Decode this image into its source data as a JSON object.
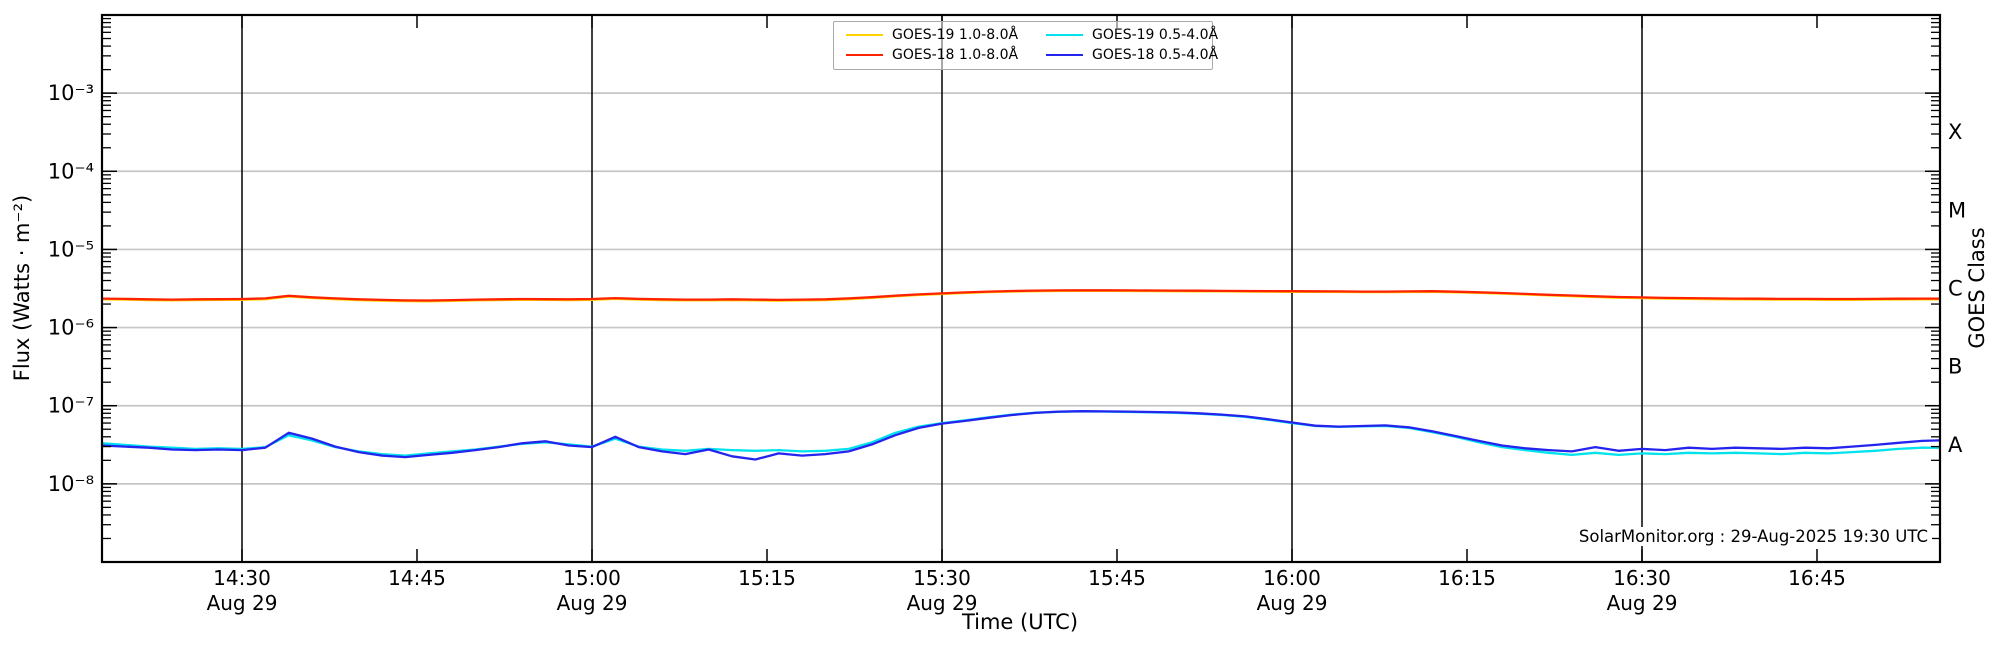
{
  "footer": {
    "credit": "SolarMonitor.org : 29-Aug-2025 19:30 UTC"
  },
  "legend": {
    "items": [
      {
        "label": "GOES-19 1.0-8.0Å",
        "color": "#ffd400"
      },
      {
        "label": "GOES-19 0.5-4.0Å",
        "color": "#00e2ec"
      },
      {
        "label": "GOES-18 1.0-8.0Å",
        "color": "#ff2200"
      },
      {
        "label": "GOES-18 0.5-4.0Å",
        "color": "#2424ee"
      }
    ]
  },
  "chart_data": {
    "type": "line",
    "title": "",
    "xlabel": "Time (UTC)",
    "ylabel_left": "Flux (Watts · m⁻²)",
    "ylabel_right": "GOES Class",
    "x_axis": {
      "unit": "minutes after 14:00 UTC",
      "range_min": [
        17.8,
        175.5
      ],
      "ticks": [
        {
          "t": 30,
          "label": "14:30",
          "date": "Aug 29",
          "gridline": true
        },
        {
          "t": 45,
          "label": "14:45",
          "date": "",
          "gridline": false
        },
        {
          "t": 60,
          "label": "15:00",
          "date": "Aug 29",
          "gridline": true
        },
        {
          "t": 75,
          "label": "15:15",
          "date": "",
          "gridline": false
        },
        {
          "t": 90,
          "label": "15:30",
          "date": "Aug 29",
          "gridline": true
        },
        {
          "t": 105,
          "label": "15:45",
          "date": "",
          "gridline": false
        },
        {
          "t": 120,
          "label": "16:00",
          "date": "Aug 29",
          "gridline": true
        },
        {
          "t": 135,
          "label": "16:15",
          "date": "",
          "gridline": false
        },
        {
          "t": 150,
          "label": "16:30",
          "date": "Aug 29",
          "gridline": true
        },
        {
          "t": 165,
          "label": "16:45",
          "date": "",
          "gridline": false
        }
      ]
    },
    "y_axis": {
      "scale": "log",
      "range": [
        1e-09,
        0.01
      ],
      "tick_exponents": [
        -3,
        -4,
        -5,
        -6,
        -7,
        -8
      ],
      "tick_labels": [
        "10⁻³",
        "10⁻⁴",
        "10⁻⁵",
        "10⁻⁶",
        "10⁻⁷",
        "10⁻⁸"
      ],
      "gridline_exponents": [
        -3,
        -4,
        -5,
        -6,
        -7,
        -8
      ]
    },
    "goes_classes": [
      {
        "label": "X",
        "center_flux": 0.000316
      },
      {
        "label": "M",
        "center_flux": 3.16e-05
      },
      {
        "label": "C",
        "center_flux": 3.16e-06
      },
      {
        "label": "B",
        "center_flux": 3.16e-07
      },
      {
        "label": "A",
        "center_flux": 3.16e-08
      }
    ],
    "colors": {
      "frame": "#000000",
      "half_hour_gridline": "#000000",
      "decade_gridline": "#c6c6c6",
      "background": "#ffffff"
    },
    "times_min": [
      18,
      20,
      22,
      24,
      26,
      28,
      30,
      32,
      34,
      36,
      38,
      40,
      42,
      44,
      46,
      48,
      50,
      52,
      54,
      56,
      58,
      60,
      62,
      64,
      66,
      68,
      70,
      72,
      74,
      76,
      78,
      80,
      82,
      84,
      86,
      88,
      90,
      92,
      94,
      96,
      98,
      100,
      102,
      104,
      106,
      108,
      110,
      112,
      114,
      116,
      118,
      120,
      122,
      124,
      126,
      128,
      130,
      132,
      134,
      136,
      138,
      140,
      142,
      144,
      146,
      148,
      150,
      152,
      154,
      156,
      158,
      160,
      162,
      164,
      166,
      168,
      170,
      172,
      174,
      175.5
    ],
    "series": [
      {
        "name": "GOES-19 1.0-8.0Å",
        "color": "#ffd400",
        "scale": 1e-06,
        "values": [
          2.3,
          2.28,
          2.25,
          2.23,
          2.25,
          2.26,
          2.27,
          2.31,
          2.5,
          2.39,
          2.31,
          2.25,
          2.21,
          2.18,
          2.17,
          2.2,
          2.23,
          2.25,
          2.27,
          2.26,
          2.25,
          2.27,
          2.33,
          2.28,
          2.25,
          2.23,
          2.23,
          2.25,
          2.23,
          2.21,
          2.23,
          2.25,
          2.31,
          2.4,
          2.51,
          2.61,
          2.69,
          2.77,
          2.84,
          2.89,
          2.92,
          2.94,
          2.95,
          2.95,
          2.94,
          2.93,
          2.92,
          2.91,
          2.9,
          2.89,
          2.88,
          2.87,
          2.86,
          2.85,
          2.84,
          2.84,
          2.85,
          2.87,
          2.83,
          2.78,
          2.72,
          2.65,
          2.58,
          2.52,
          2.46,
          2.41,
          2.38,
          2.35,
          2.33,
          2.31,
          2.3,
          2.29,
          2.28,
          2.28,
          2.27,
          2.27,
          2.28,
          2.29,
          2.3,
          2.3
        ]
      },
      {
        "name": "GOES-18 1.0-8.0Å",
        "color": "#ff2200",
        "scale": 1e-06,
        "values": [
          2.35,
          2.33,
          2.3,
          2.28,
          2.3,
          2.31,
          2.32,
          2.36,
          2.55,
          2.44,
          2.36,
          2.3,
          2.26,
          2.23,
          2.22,
          2.25,
          2.28,
          2.3,
          2.32,
          2.31,
          2.3,
          2.32,
          2.38,
          2.33,
          2.3,
          2.28,
          2.28,
          2.3,
          2.28,
          2.26,
          2.28,
          2.3,
          2.36,
          2.45,
          2.56,
          2.66,
          2.74,
          2.82,
          2.89,
          2.94,
          2.97,
          2.99,
          3.0,
          3.0,
          2.99,
          2.98,
          2.97,
          2.96,
          2.95,
          2.94,
          2.93,
          2.92,
          2.91,
          2.9,
          2.89,
          2.89,
          2.9,
          2.92,
          2.88,
          2.83,
          2.77,
          2.7,
          2.63,
          2.57,
          2.51,
          2.46,
          2.43,
          2.4,
          2.38,
          2.36,
          2.35,
          2.34,
          2.33,
          2.33,
          2.32,
          2.32,
          2.33,
          2.34,
          2.35,
          2.35
        ]
      },
      {
        "name": "GOES-19 0.5-4.0Å",
        "color": "#00e2ec",
        "scale": 1e-08,
        "values": [
          3.3,
          3.15,
          3.0,
          2.9,
          2.8,
          2.85,
          2.8,
          2.95,
          4.2,
          3.6,
          2.95,
          2.6,
          2.4,
          2.3,
          2.45,
          2.6,
          2.75,
          3.0,
          3.25,
          3.4,
          3.2,
          3.0,
          3.8,
          3.0,
          2.75,
          2.65,
          2.8,
          2.7,
          2.65,
          2.7,
          2.6,
          2.65,
          2.8,
          3.4,
          4.5,
          5.4,
          6.0,
          6.5,
          7.1,
          7.7,
          8.15,
          8.35,
          8.45,
          8.4,
          8.3,
          8.2,
          8.1,
          7.9,
          7.6,
          7.2,
          6.6,
          6.0,
          5.5,
          5.35,
          5.45,
          5.5,
          5.2,
          4.6,
          4.0,
          3.4,
          2.95,
          2.7,
          2.5,
          2.35,
          2.5,
          2.35,
          2.45,
          2.4,
          2.5,
          2.45,
          2.5,
          2.45,
          2.4,
          2.5,
          2.45,
          2.55,
          2.65,
          2.8,
          2.9,
          2.9
        ]
      },
      {
        "name": "GOES-18 0.5-4.0Å",
        "color": "#2424ee",
        "scale": 1e-08,
        "values": [
          3.1,
          3.0,
          2.9,
          2.75,
          2.7,
          2.75,
          2.7,
          2.9,
          4.5,
          3.8,
          3.0,
          2.55,
          2.3,
          2.2,
          2.35,
          2.5,
          2.7,
          2.95,
          3.3,
          3.5,
          3.1,
          2.95,
          4.0,
          2.95,
          2.6,
          2.4,
          2.75,
          2.25,
          2.05,
          2.45,
          2.3,
          2.4,
          2.6,
          3.2,
          4.2,
          5.2,
          5.9,
          6.4,
          7.0,
          7.6,
          8.1,
          8.4,
          8.5,
          8.45,
          8.4,
          8.3,
          8.2,
          8.0,
          7.7,
          7.3,
          6.7,
          6.1,
          5.55,
          5.4,
          5.5,
          5.6,
          5.3,
          4.7,
          4.1,
          3.55,
          3.1,
          2.85,
          2.7,
          2.6,
          2.95,
          2.65,
          2.8,
          2.7,
          2.9,
          2.8,
          2.9,
          2.85,
          2.8,
          2.9,
          2.85,
          3.0,
          3.15,
          3.35,
          3.55,
          3.6
        ]
      }
    ]
  }
}
